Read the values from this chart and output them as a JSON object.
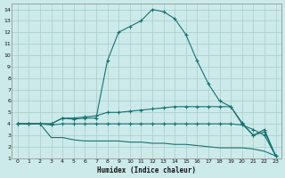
{
  "xlabel": "Humidex (Indice chaleur)",
  "bg_color": "#cceaea",
  "grid_color": "#b0d0d0",
  "line_color": "#1a7070",
  "xlim": [
    -0.5,
    23.5
  ],
  "ylim": [
    1,
    14.5
  ],
  "xtick_labels": [
    "0",
    "1",
    "2",
    "3",
    "4",
    "5",
    "6",
    "7",
    "8",
    "9",
    "10",
    "11",
    "12",
    "13",
    "14",
    "15",
    "16",
    "17",
    "18",
    "19",
    "20",
    "21",
    "22",
    "23"
  ],
  "ytick_labels": [
    "1",
    "2",
    "3",
    "4",
    "5",
    "6",
    "7",
    "8",
    "9",
    "10",
    "11",
    "12",
    "13",
    "14"
  ],
  "curve1_x": [
    0,
    1,
    2,
    3,
    4,
    5,
    6,
    7,
    8,
    9,
    10,
    11,
    12,
    13,
    14,
    15,
    16,
    17,
    18,
    19,
    20,
    21,
    22,
    23
  ],
  "curve1_y": [
    4.0,
    4.0,
    4.0,
    4.0,
    4.5,
    4.4,
    4.5,
    4.5,
    9.5,
    12.0,
    12.5,
    13.0,
    14.0,
    13.8,
    13.2,
    11.8,
    9.5,
    7.5,
    6.0,
    5.5,
    4.1,
    3.0,
    3.3,
    1.2
  ],
  "curve2_x": [
    0,
    1,
    2,
    3,
    4,
    5,
    6,
    7,
    8,
    9,
    10,
    11,
    12,
    13,
    14,
    15,
    16,
    17,
    18,
    19,
    20,
    21,
    22,
    23
  ],
  "curve2_y": [
    4.0,
    4.0,
    4.0,
    4.0,
    4.5,
    4.5,
    4.6,
    4.7,
    5.0,
    5.0,
    5.1,
    5.2,
    5.3,
    5.4,
    5.5,
    5.5,
    5.5,
    5.5,
    5.5,
    5.5,
    4.0,
    3.0,
    3.5,
    1.2
  ],
  "curve3_x": [
    0,
    1,
    2,
    3,
    4,
    5,
    6,
    7,
    8,
    9,
    10,
    11,
    12,
    13,
    14,
    15,
    16,
    17,
    18,
    19,
    20,
    21,
    22,
    23
  ],
  "curve3_y": [
    4.0,
    4.0,
    4.0,
    3.9,
    4.0,
    4.0,
    4.0,
    4.0,
    4.0,
    4.0,
    4.0,
    4.0,
    4.0,
    4.0,
    4.0,
    4.0,
    4.0,
    4.0,
    4.0,
    4.0,
    3.9,
    3.5,
    3.0,
    1.2
  ],
  "curve4_x": [
    0,
    1,
    2,
    3,
    4,
    5,
    6,
    7,
    8,
    9,
    10,
    11,
    12,
    13,
    14,
    15,
    16,
    17,
    18,
    19,
    20,
    21,
    22,
    23
  ],
  "curve4_y": [
    4.0,
    4.0,
    4.0,
    2.8,
    2.8,
    2.6,
    2.5,
    2.5,
    2.5,
    2.5,
    2.4,
    2.4,
    2.3,
    2.3,
    2.2,
    2.2,
    2.1,
    2.0,
    1.9,
    1.9,
    1.9,
    1.8,
    1.6,
    1.2
  ]
}
